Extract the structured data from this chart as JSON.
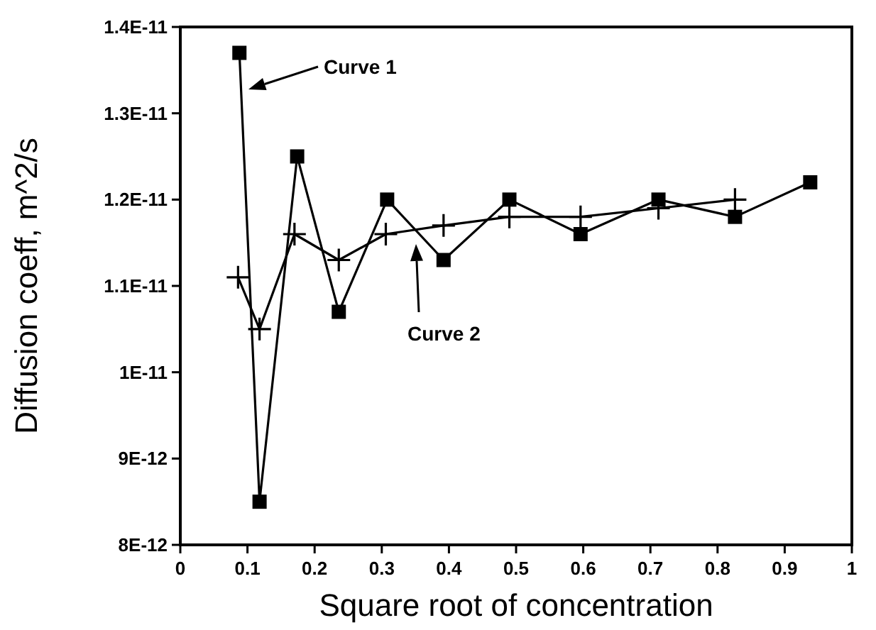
{
  "chart_data": {
    "type": "line",
    "xlabel": "Square root of concentration",
    "ylabel": "Diffusion coeff,  m^2/s",
    "xlim": [
      0,
      1
    ],
    "xticks": [
      0,
      0.1,
      0.2,
      0.3,
      0.4,
      0.5,
      0.6,
      0.7,
      0.8,
      0.9,
      1
    ],
    "ylim": [
      8e-12,
      1.4e-11
    ],
    "yticks": [
      {
        "value": 8e-12,
        "label": "8E-12"
      },
      {
        "value": 9e-12,
        "label": "9E-12"
      },
      {
        "value": 1e-11,
        "label": "1E-11"
      },
      {
        "value": 1.1e-11,
        "label": "1.1E-11"
      },
      {
        "value": 1.2e-11,
        "label": "1.2E-11"
      },
      {
        "value": 1.3e-11,
        "label": "1.3E-11"
      },
      {
        "value": 1.4e-11,
        "label": "1.4E-11"
      }
    ],
    "grid": false,
    "series": [
      {
        "color": "#000000",
        "marker": "square",
        "x": [
          0.088,
          0.118,
          0.174,
          0.236,
          0.308,
          0.392,
          0.49,
          0.596,
          0.712,
          0.826,
          0.938
        ],
        "values": [
          1.37e-11,
          8.5e-12,
          1.25e-11,
          1.07e-11,
          1.2e-11,
          1.13e-11,
          1.2e-11,
          1.16e-11,
          1.2e-11,
          1.18e-11,
          1.22e-11
        ]
      },
      {
        "color": "#000000",
        "marker": "cross",
        "x": [
          0.086,
          0.118,
          0.17,
          0.236,
          0.306,
          0.392,
          0.49,
          0.596,
          0.712,
          0.826
        ],
        "values": [
          1.11e-11,
          1.05e-11,
          1.16e-11,
          1.13e-11,
          1.16e-11,
          1.17e-11,
          1.18e-11,
          1.18e-11,
          1.19e-11,
          1.2e-11
        ]
      }
    ],
    "annotations": [
      "Curve 1",
      "Curve 2"
    ]
  }
}
